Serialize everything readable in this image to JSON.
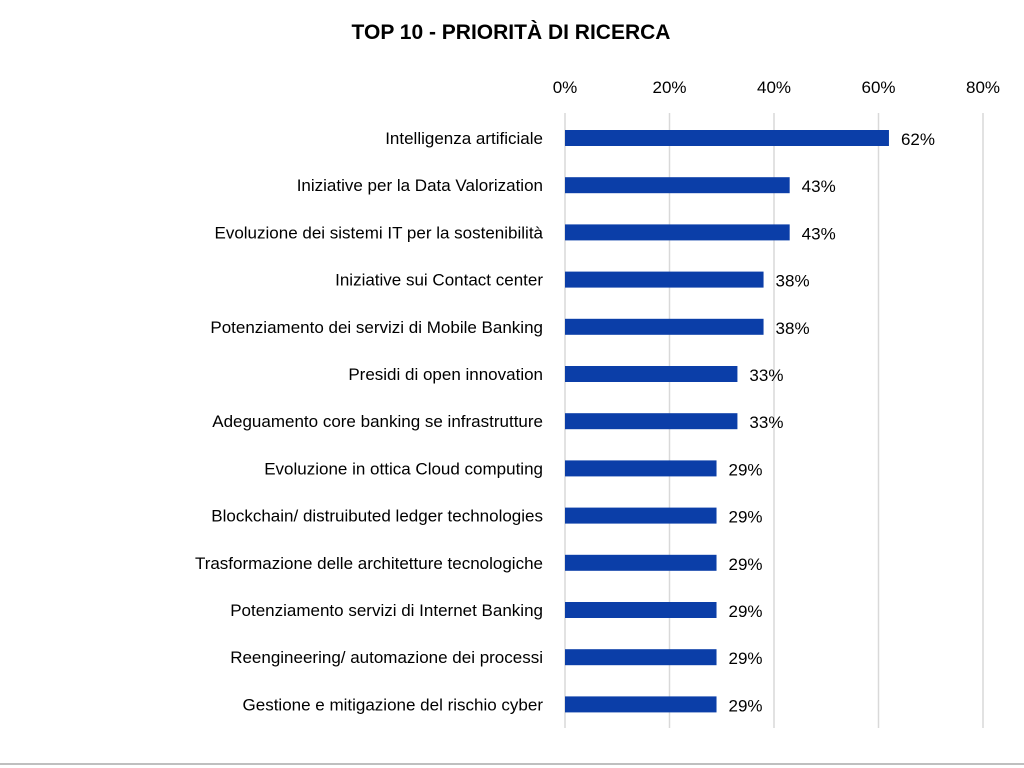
{
  "colors": {
    "bar": "#0b3ea8",
    "grid": "#d9d9d9",
    "text": "#000000",
    "bottom_rule": "#bfbfbf"
  },
  "chart_data": {
    "type": "bar",
    "orientation": "horizontal",
    "title": "TOP 10 - PRIORITÀ DI RICERCA",
    "xlabel": "",
    "ylabel": "",
    "xlim": [
      0,
      80
    ],
    "x_ticks": [
      0,
      20,
      40,
      60,
      80
    ],
    "x_tick_labels": [
      "0%",
      "20%",
      "40%",
      "60%",
      "80%"
    ],
    "x_axis_position": "top",
    "grid": true,
    "legend": "none",
    "categories": [
      "Intelligenza artificiale",
      "Iniziative per la Data Valorization",
      "Evoluzione dei sistemi IT per la sostenibilità",
      "Iniziative sui Contact center",
      "Potenziamento dei servizi di Mobile Banking",
      "Presidi di open innovation",
      "Adeguamento core banking se infrastrutture",
      "Evoluzione in ottica Cloud computing",
      "Blockchain/ distruibuted ledger technologies",
      "Trasformazione delle architetture tecnologiche",
      "Potenziamento servizi di Internet Banking",
      "Reengineering/ automazione dei processi",
      "Gestione e mitigazione del rischio cyber"
    ],
    "values": [
      62,
      43,
      43,
      38,
      38,
      33,
      33,
      29,
      29,
      29,
      29,
      29,
      29
    ],
    "value_labels": [
      "62%",
      "43%",
      "43%",
      "38%",
      "38%",
      "33%",
      "33%",
      "29%",
      "29%",
      "29%",
      "29%",
      "29%",
      "29%"
    ]
  }
}
